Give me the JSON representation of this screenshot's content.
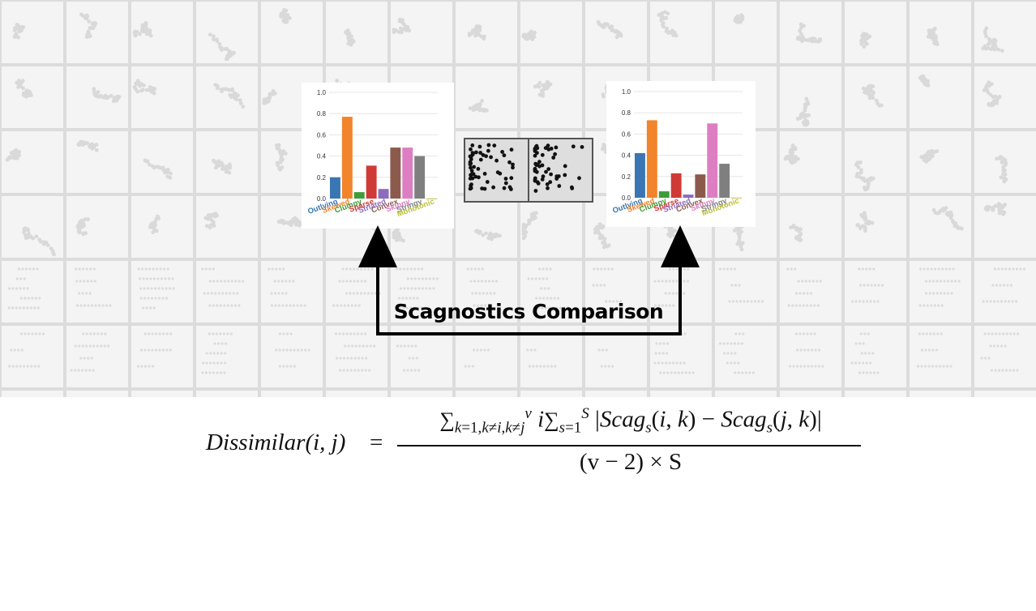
{
  "diagram": {
    "label": "Scagnostics Comparison",
    "arrow_color": "#000000"
  },
  "bars": {
    "measures": [
      "Outlying",
      "Skewed",
      "Clumpy",
      "Sparse",
      "Striated",
      "Convex",
      "Skinny",
      "Stringy",
      "Monotonic"
    ],
    "colors": [
      "#3a76b4",
      "#f2842c",
      "#3f9c3a",
      "#d03a36",
      "#8c6cbd",
      "#8c5a4d",
      "#dd7ec3",
      "#7f7f7f",
      "#bcbd35"
    ],
    "y_ticks": [
      "0.0",
      "0.2",
      "0.4",
      "0.6",
      "0.8",
      "1.0"
    ]
  },
  "chart_data": [
    {
      "type": "bar",
      "categories": [
        "Outlying",
        "Skewed",
        "Clumpy",
        "Sparse",
        "Striated",
        "Convex",
        "Skinny",
        "Stringy",
        "Monotonic"
      ],
      "values": [
        0.2,
        0.77,
        0.06,
        0.31,
        0.09,
        0.48,
        0.48,
        0.4,
        0.0
      ],
      "ylim": [
        0,
        1.0
      ]
    },
    {
      "type": "bar",
      "categories": [
        "Outlying",
        "Skewed",
        "Clumpy",
        "Sparse",
        "Striated",
        "Convex",
        "Skinny",
        "Stringy",
        "Monotonic"
      ],
      "values": [
        0.42,
        0.73,
        0.06,
        0.23,
        0.03,
        0.22,
        0.7,
        0.32,
        0.0
      ],
      "ylim": [
        0,
        1.0
      ]
    }
  ],
  "formula": {
    "lhs": "Dissimilar(i, j)",
    "eq": "=",
    "den": "(v − 2) × S"
  }
}
